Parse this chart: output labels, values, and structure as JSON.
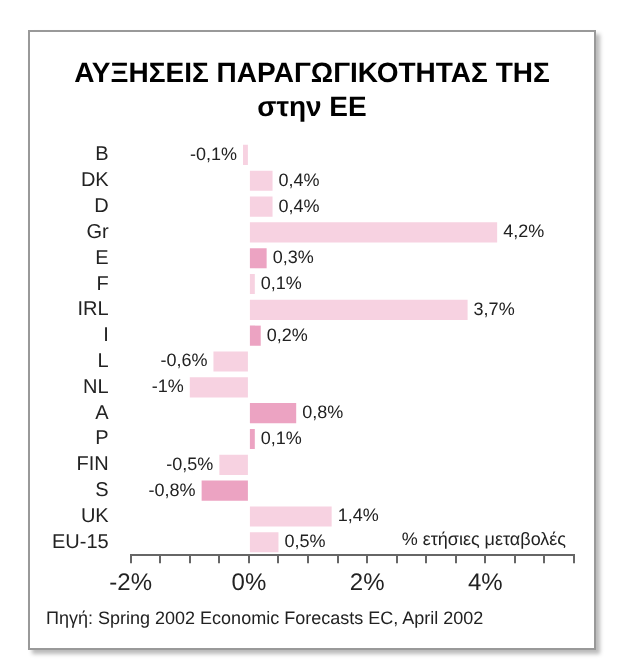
{
  "chart_data": {
    "type": "bar",
    "orientation": "horizontal",
    "title": "ΑΥΞΗΣΕΙΣ ΠΑΡΑΓΩΓΙΚΟΤΗΤΑΣ ΤΗΣ στην ΕΕ",
    "xlabel": "% ετήσιες μεταβολές",
    "categories": [
      "B",
      "DK",
      "D",
      "Gr",
      "E",
      "F",
      "IRL",
      "I",
      "L",
      "NL",
      "A",
      "P",
      "FIN",
      "S",
      "UK",
      "EU-15"
    ],
    "values": [
      -0.1,
      0.4,
      0.4,
      4.2,
      0.3,
      0.1,
      3.7,
      0.2,
      -0.6,
      -1,
      0.8,
      0.1,
      -0.5,
      -0.8,
      1.4,
      0.5
    ],
    "value_labels": [
      "-0,1%",
      "0,4%",
      "0,4%",
      "4,2%",
      "0,3%",
      "0,1%",
      "3,7%",
      "0,2%",
      "-0,6%",
      "-1%",
      "0,8%",
      "0,1%",
      "-0,5%",
      "-0,8%",
      "1,4%",
      "0,5%"
    ],
    "colors": [
      "#f7d2e1",
      "#f7d2e1",
      "#f7d2e1",
      "#f7d2e1",
      "#eca3c2",
      "#f7d2e1",
      "#f7d2e1",
      "#eca3c2",
      "#f7d2e1",
      "#f7d2e1",
      "#eca3c2",
      "#eca3c2",
      "#f7d2e1",
      "#eca3c2",
      "#f7d2e1",
      "#f7d2e1"
    ],
    "xlim": [
      -2,
      5.5
    ],
    "xticks": [
      {
        "value": -2,
        "label": "-2%"
      },
      {
        "value": -1.5,
        "label": null
      },
      {
        "value": -1,
        "label": null
      },
      {
        "value": -0.5,
        "label": null
      },
      {
        "value": 0,
        "label": "0%"
      },
      {
        "value": 0.5,
        "label": null
      },
      {
        "value": 1,
        "label": null
      },
      {
        "value": 1.5,
        "label": null
      },
      {
        "value": 2,
        "label": "2%"
      },
      {
        "value": 2.5,
        "label": null
      },
      {
        "value": 3,
        "label": null
      },
      {
        "value": 3.5,
        "label": null
      },
      {
        "value": 4,
        "label": "4%"
      },
      {
        "value": 4.5,
        "label": null
      },
      {
        "value": 5,
        "label": null
      },
      {
        "value": 5.5,
        "label": null
      }
    ],
    "grid": false,
    "legend": false,
    "annotations": [
      "Πηγή: Spring 2002 Economic Forecasts EC, April 2002"
    ]
  }
}
